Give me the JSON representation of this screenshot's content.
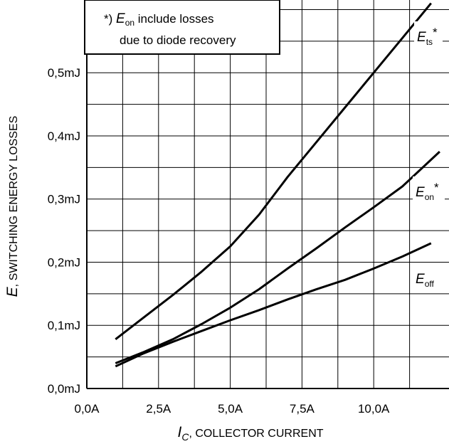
{
  "chart_data": {
    "type": "line",
    "xlabel": {
      "symbol": "I",
      "sub": "C",
      "text": ", COLLECTOR CURRENT"
    },
    "ylabel": {
      "symbol": "E",
      "text": ", SWITCHING ENERGY LOSSES"
    },
    "xlim": [
      0,
      12.3
    ],
    "ylim": [
      0,
      0.6
    ],
    "x_ticks": [
      0,
      2.5,
      5,
      7.5,
      10
    ],
    "x_tick_labels": [
      "0,0A",
      "2,5A",
      "5,0A",
      "7,5A",
      "10,0A"
    ],
    "y_ticks": [
      0,
      0.1,
      0.2,
      0.3,
      0.4,
      0.5
    ],
    "y_tick_labels": [
      "0,0mJ",
      "0,1mJ",
      "0,2mJ",
      "0,3mJ",
      "0,4mJ",
      "0,5mJ"
    ],
    "grid": true,
    "note": {
      "prefix": "*) ",
      "symbol": "E",
      "sub": "on",
      "line1_rest": " include losses",
      "line2": "due to diode recovery"
    },
    "series": [
      {
        "name": "Ets*",
        "label_main": "E",
        "label_sub": "ts",
        "label_suffix": "*",
        "x": [
          1,
          2,
          3,
          4,
          5,
          6,
          7,
          8,
          9,
          10,
          11,
          12
        ],
        "y": [
          0.078,
          0.113,
          0.148,
          0.185,
          0.225,
          0.275,
          0.335,
          0.39,
          0.445,
          0.5,
          0.555,
          0.61
        ]
      },
      {
        "name": "Eon*",
        "label_main": "E",
        "label_sub": "on",
        "label_suffix": "*",
        "x": [
          1,
          2,
          3,
          4,
          5,
          6,
          7,
          8,
          9,
          10,
          11,
          12.3
        ],
        "y": [
          0.04,
          0.058,
          0.078,
          0.102,
          0.128,
          0.157,
          0.19,
          0.222,
          0.255,
          0.287,
          0.32,
          0.375
        ]
      },
      {
        "name": "Eoff",
        "label_main": "E",
        "label_sub": "off",
        "label_suffix": "",
        "x": [
          1,
          2,
          3,
          4,
          5,
          6,
          7,
          8,
          9,
          10,
          11,
          12
        ],
        "y": [
          0.035,
          0.056,
          0.074,
          0.091,
          0.108,
          0.124,
          0.141,
          0.157,
          0.172,
          0.19,
          0.209,
          0.23
        ]
      }
    ]
  }
}
